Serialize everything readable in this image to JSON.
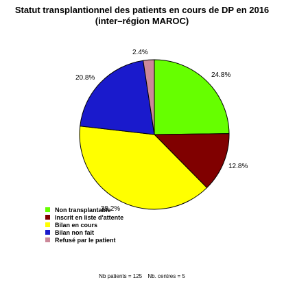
{
  "chart_data": {
    "type": "pie",
    "title": "Statut transplantionnel des patients en cours de DP en 2016",
    "subtitle": "(inter–région MAROC)",
    "slices": [
      {
        "label": "Non transplantable",
        "value": 24.8,
        "display": "24.8%",
        "color": "#66ff00"
      },
      {
        "label": "Inscrit en liste d'attente",
        "value": 12.8,
        "display": "12.8%",
        "color": "#800000"
      },
      {
        "label": "Bilan en cours",
        "value": 39.2,
        "display": "39.2%",
        "color": "#ffff00"
      },
      {
        "label": "Bilan non fait",
        "value": 20.8,
        "display": "20.8%",
        "color": "#1a1acc"
      },
      {
        "label": "Refusé par le patient",
        "value": 2.4,
        "display": "2.4%",
        "color": "#cc8899"
      }
    ],
    "legend_position": "bottom-left"
  },
  "footer": {
    "patients": "Nb patients = 125",
    "centres": "Nb. centres = 5"
  }
}
